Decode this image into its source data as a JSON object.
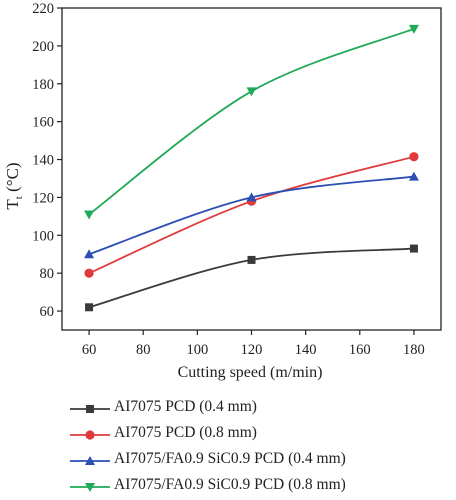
{
  "chart_data": {
    "type": "line",
    "xlabel": "Cutting speed (m/min)",
    "ylabel": {
      "base": "T",
      "sub": "t",
      "unit": " (°C)"
    },
    "xlim": [
      50,
      190
    ],
    "ylim": [
      50,
      220
    ],
    "xticks": [
      60,
      80,
      100,
      120,
      140,
      160,
      180
    ],
    "yticks": [
      60,
      80,
      100,
      120,
      140,
      160,
      180,
      200,
      220
    ],
    "grid": false,
    "legend_position": "below",
    "x": [
      60,
      120,
      180
    ],
    "series": [
      {
        "name": "AI7075 PCD (0.4 mm)",
        "values": [
          62,
          87,
          93
        ],
        "color": "#3a3a3a",
        "marker": "square"
      },
      {
        "name": "AI7075 PCD (0.8 mm)",
        "values": [
          80,
          118,
          141.5
        ],
        "color": "#e03a3a",
        "marker": "circle"
      },
      {
        "name": "AI7075/FA0.9 SiC0.9 PCD (0.4 mm)",
        "values": [
          90,
          120,
          131
        ],
        "color": "#2b4fb3",
        "marker": "triangle-up"
      },
      {
        "name": "AI7075/FA0.9 SiC0.9 PCD (0.8 mm)",
        "values": [
          111,
          176,
          209
        ],
        "color": "#1faa57",
        "marker": "triangle-down"
      }
    ]
  }
}
